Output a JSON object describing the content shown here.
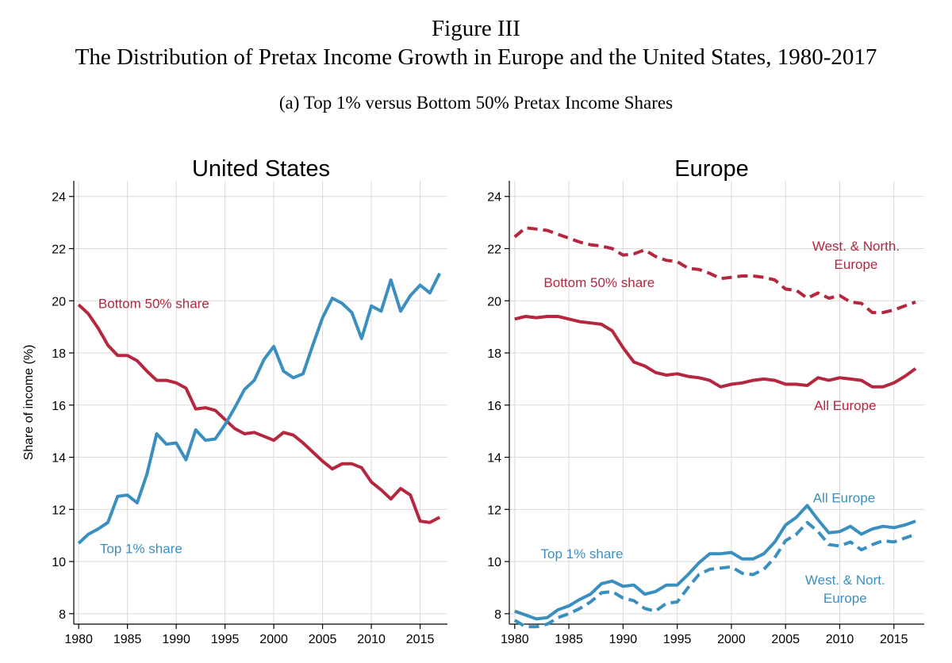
{
  "figure": {
    "label": "Figure III",
    "title": "The Distribution of Pretax Income Growth in Europe and the United States, 1980-2017",
    "subtitle": "(a) Top 1% versus Bottom 50% Pretax Income Shares"
  },
  "colors": {
    "bottom50": "#B5263F",
    "top1": "#3A8FBF",
    "grid": "#DADADA",
    "axis": "#000000"
  },
  "chart_data": [
    {
      "type": "line",
      "title": "United States",
      "ylabel": "Share of income (%)",
      "xlim": [
        1979.5,
        2017.8
      ],
      "ylim": [
        7.6,
        24.6
      ],
      "xticks": [
        1980,
        1985,
        1990,
        1995,
        2000,
        2005,
        2010,
        2015
      ],
      "yticks": [
        8,
        10,
        12,
        14,
        16,
        18,
        20,
        22,
        24
      ],
      "grid": true,
      "x": [
        1980,
        1981,
        1982,
        1983,
        1984,
        1985,
        1986,
        1987,
        1988,
        1989,
        1990,
        1991,
        1992,
        1993,
        1994,
        1995,
        1996,
        1997,
        1998,
        1999,
        2000,
        2001,
        2002,
        2003,
        2004,
        2005,
        2006,
        2007,
        2008,
        2009,
        2010,
        2011,
        2012,
        2013,
        2014,
        2015,
        2016,
        2017
      ],
      "series": [
        {
          "name": "Bottom 50% share",
          "color_key": "bottom50",
          "dash": "solid",
          "values": [
            19.85,
            19.5,
            18.95,
            18.3,
            17.9,
            17.9,
            17.7,
            17.3,
            16.95,
            16.95,
            16.85,
            16.65,
            15.85,
            15.9,
            15.8,
            15.45,
            15.1,
            14.9,
            14.95,
            14.8,
            14.65,
            14.95,
            14.85,
            14.55,
            14.2,
            13.85,
            13.55,
            13.75,
            13.75,
            13.6,
            13.05,
            12.75,
            12.4,
            12.8,
            12.55,
            11.55,
            11.5,
            11.7
          ]
        },
        {
          "name": "Top 1% share",
          "color_key": "top1",
          "dash": "solid",
          "values": [
            10.7,
            11.05,
            11.25,
            11.5,
            12.5,
            12.55,
            12.25,
            13.35,
            14.9,
            14.5,
            14.55,
            13.9,
            15.05,
            14.65,
            14.7,
            15.25,
            15.9,
            16.6,
            16.95,
            17.75,
            18.25,
            17.3,
            17.05,
            17.2,
            18.3,
            19.35,
            20.1,
            19.9,
            19.55,
            18.55,
            19.8,
            19.6,
            20.8,
            19.6,
            20.2,
            20.6,
            20.3,
            21.05
          ]
        }
      ],
      "annotations": [
        {
          "text": "Bottom 50% share",
          "color_key": "bottom50",
          "x": 1987.7,
          "y": 19.9
        },
        {
          "text": "Top 1% share",
          "color_key": "top1",
          "x": 1986.4,
          "y": 10.5
        }
      ]
    },
    {
      "type": "line",
      "title": "Europe",
      "ylabel": "",
      "xlim": [
        1979.5,
        2017.8
      ],
      "ylim": [
        7.6,
        24.6
      ],
      "xticks": [
        1980,
        1985,
        1990,
        1995,
        2000,
        2005,
        2010,
        2015
      ],
      "yticks": [
        8,
        10,
        12,
        14,
        16,
        18,
        20,
        22,
        24
      ],
      "grid": true,
      "x": [
        1980,
        1981,
        1982,
        1983,
        1984,
        1985,
        1986,
        1987,
        1988,
        1989,
        1990,
        1991,
        1992,
        1993,
        1994,
        1995,
        1996,
        1997,
        1998,
        1999,
        2000,
        2001,
        2002,
        2003,
        2004,
        2005,
        2006,
        2007,
        2008,
        2009,
        2010,
        2011,
        2012,
        2013,
        2014,
        2015,
        2016,
        2017
      ],
      "series": [
        {
          "name": "West. & North. Europe",
          "color_key": "bottom50",
          "dash": "dashed",
          "values": [
            22.45,
            22.8,
            22.75,
            22.7,
            22.55,
            22.4,
            22.25,
            22.15,
            22.1,
            22.0,
            21.75,
            21.8,
            21.95,
            21.7,
            21.55,
            21.5,
            21.25,
            21.2,
            21.05,
            20.85,
            20.9,
            20.95,
            20.95,
            20.9,
            20.8,
            20.45,
            20.4,
            20.1,
            20.3,
            20.1,
            20.2,
            19.95,
            19.9,
            19.55,
            19.55,
            19.65,
            19.8,
            19.95
          ]
        },
        {
          "name": "All Europe",
          "color_key": "bottom50",
          "dash": "solid",
          "values": [
            19.3,
            19.4,
            19.35,
            19.4,
            19.4,
            19.3,
            19.2,
            19.15,
            19.1,
            18.85,
            18.2,
            17.65,
            17.5,
            17.25,
            17.15,
            17.2,
            17.1,
            17.05,
            16.95,
            16.7,
            16.8,
            16.85,
            16.95,
            17.0,
            16.95,
            16.8,
            16.8,
            16.75,
            17.05,
            16.95,
            17.05,
            17.0,
            16.95,
            16.7,
            16.7,
            16.85,
            17.1,
            17.4
          ]
        },
        {
          "name": "All Europe",
          "color_key": "top1",
          "dash": "solid",
          "values": [
            8.1,
            7.95,
            7.8,
            7.85,
            8.15,
            8.3,
            8.55,
            8.75,
            9.15,
            9.25,
            9.05,
            9.1,
            8.75,
            8.85,
            9.1,
            9.1,
            9.5,
            9.95,
            10.3,
            10.3,
            10.35,
            10.1,
            10.1,
            10.3,
            10.75,
            11.4,
            11.7,
            12.15,
            11.6,
            11.1,
            11.15,
            11.35,
            11.05,
            11.25,
            11.35,
            11.3,
            11.4,
            11.55
          ]
        },
        {
          "name": "West. & Nort. Europe",
          "color_key": "top1",
          "dash": "dashed",
          "values": [
            7.75,
            7.5,
            7.5,
            7.6,
            7.85,
            8.0,
            8.2,
            8.45,
            8.8,
            8.85,
            8.6,
            8.5,
            8.2,
            8.1,
            8.4,
            8.45,
            9.0,
            9.5,
            9.7,
            9.75,
            9.8,
            9.55,
            9.5,
            9.7,
            10.15,
            10.8,
            11.05,
            11.5,
            11.15,
            10.65,
            10.6,
            10.75,
            10.45,
            10.65,
            10.8,
            10.75,
            10.9,
            11.05
          ]
        }
      ],
      "annotations": [
        {
          "text": "Bottom 50% share",
          "color_key": "bottom50",
          "x": 1987.8,
          "y": 20.7
        },
        {
          "text": "West. & North.",
          "color_key": "bottom50",
          "x": 2011.5,
          "y": 22.1
        },
        {
          "text": "Europe",
          "color_key": "bottom50",
          "x": 2011.5,
          "y": 21.4
        },
        {
          "text": "All Europe",
          "color_key": "bottom50",
          "x": 2010.5,
          "y": 16.0
        },
        {
          "text": "All Europe",
          "color_key": "top1",
          "x": 2010.4,
          "y": 12.45
        },
        {
          "text": "Top 1% share",
          "color_key": "top1",
          "x": 1986.2,
          "y": 10.3
        },
        {
          "text": "West. & Nort.",
          "color_key": "top1",
          "x": 2010.5,
          "y": 9.3
        },
        {
          "text": "Europe",
          "color_key": "top1",
          "x": 2010.5,
          "y": 8.6
        }
      ]
    }
  ]
}
